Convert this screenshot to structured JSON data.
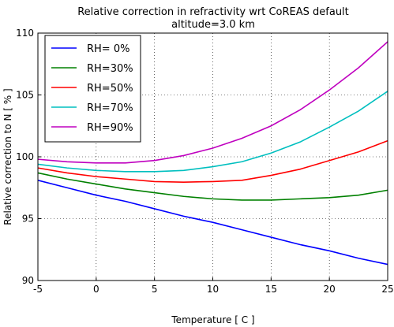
{
  "chart_data": {
    "type": "line",
    "title": "Relative correction in refractivity wrt CoREAS default",
    "subtitle": "altitude=3.0 km",
    "x_label": "Temperature [ C ]",
    "y_label": "Relative correction to N [ % ]",
    "x": [
      -5,
      -2.5,
      0,
      2.5,
      5,
      7.5,
      10,
      12.5,
      15,
      17.5,
      20,
      22.5,
      25
    ],
    "series": [
      {
        "name": "RH= 0%",
        "color": "#0000ff",
        "values": [
          98.1,
          97.5,
          96.9,
          96.4,
          95.8,
          95.2,
          94.7,
          94.1,
          93.5,
          92.9,
          92.4,
          91.8,
          91.3
        ]
      },
      {
        "name": "RH=30%",
        "color": "#008000",
        "values": [
          98.7,
          98.2,
          97.8,
          97.4,
          97.1,
          96.8,
          96.6,
          96.5,
          96.5,
          96.6,
          96.7,
          96.9,
          97.3
        ]
      },
      {
        "name": "RH=50%",
        "color": "#ff0000",
        "values": [
          99.1,
          98.7,
          98.4,
          98.2,
          98.0,
          97.95,
          98.0,
          98.1,
          98.5,
          99.0,
          99.7,
          100.4,
          101.3
        ]
      },
      {
        "name": "RH=70%",
        "color": "#00bfbf",
        "values": [
          99.4,
          99.1,
          98.9,
          98.8,
          98.8,
          98.9,
          99.2,
          99.6,
          100.3,
          101.2,
          102.4,
          103.7,
          105.3
        ]
      },
      {
        "name": "RH=90%",
        "color": "#bf00bf",
        "values": [
          99.8,
          99.6,
          99.5,
          99.5,
          99.7,
          100.1,
          100.7,
          101.5,
          102.5,
          103.8,
          105.4,
          107.2,
          109.3
        ]
      }
    ],
    "xlim": [
      -5,
      25
    ],
    "xticks": [
      -5,
      0,
      5,
      10,
      15,
      20,
      25
    ],
    "ylim": [
      90,
      110
    ],
    "yticks": [
      90,
      95,
      100,
      105,
      110
    ],
    "grid": true,
    "legend": "upper-left"
  }
}
